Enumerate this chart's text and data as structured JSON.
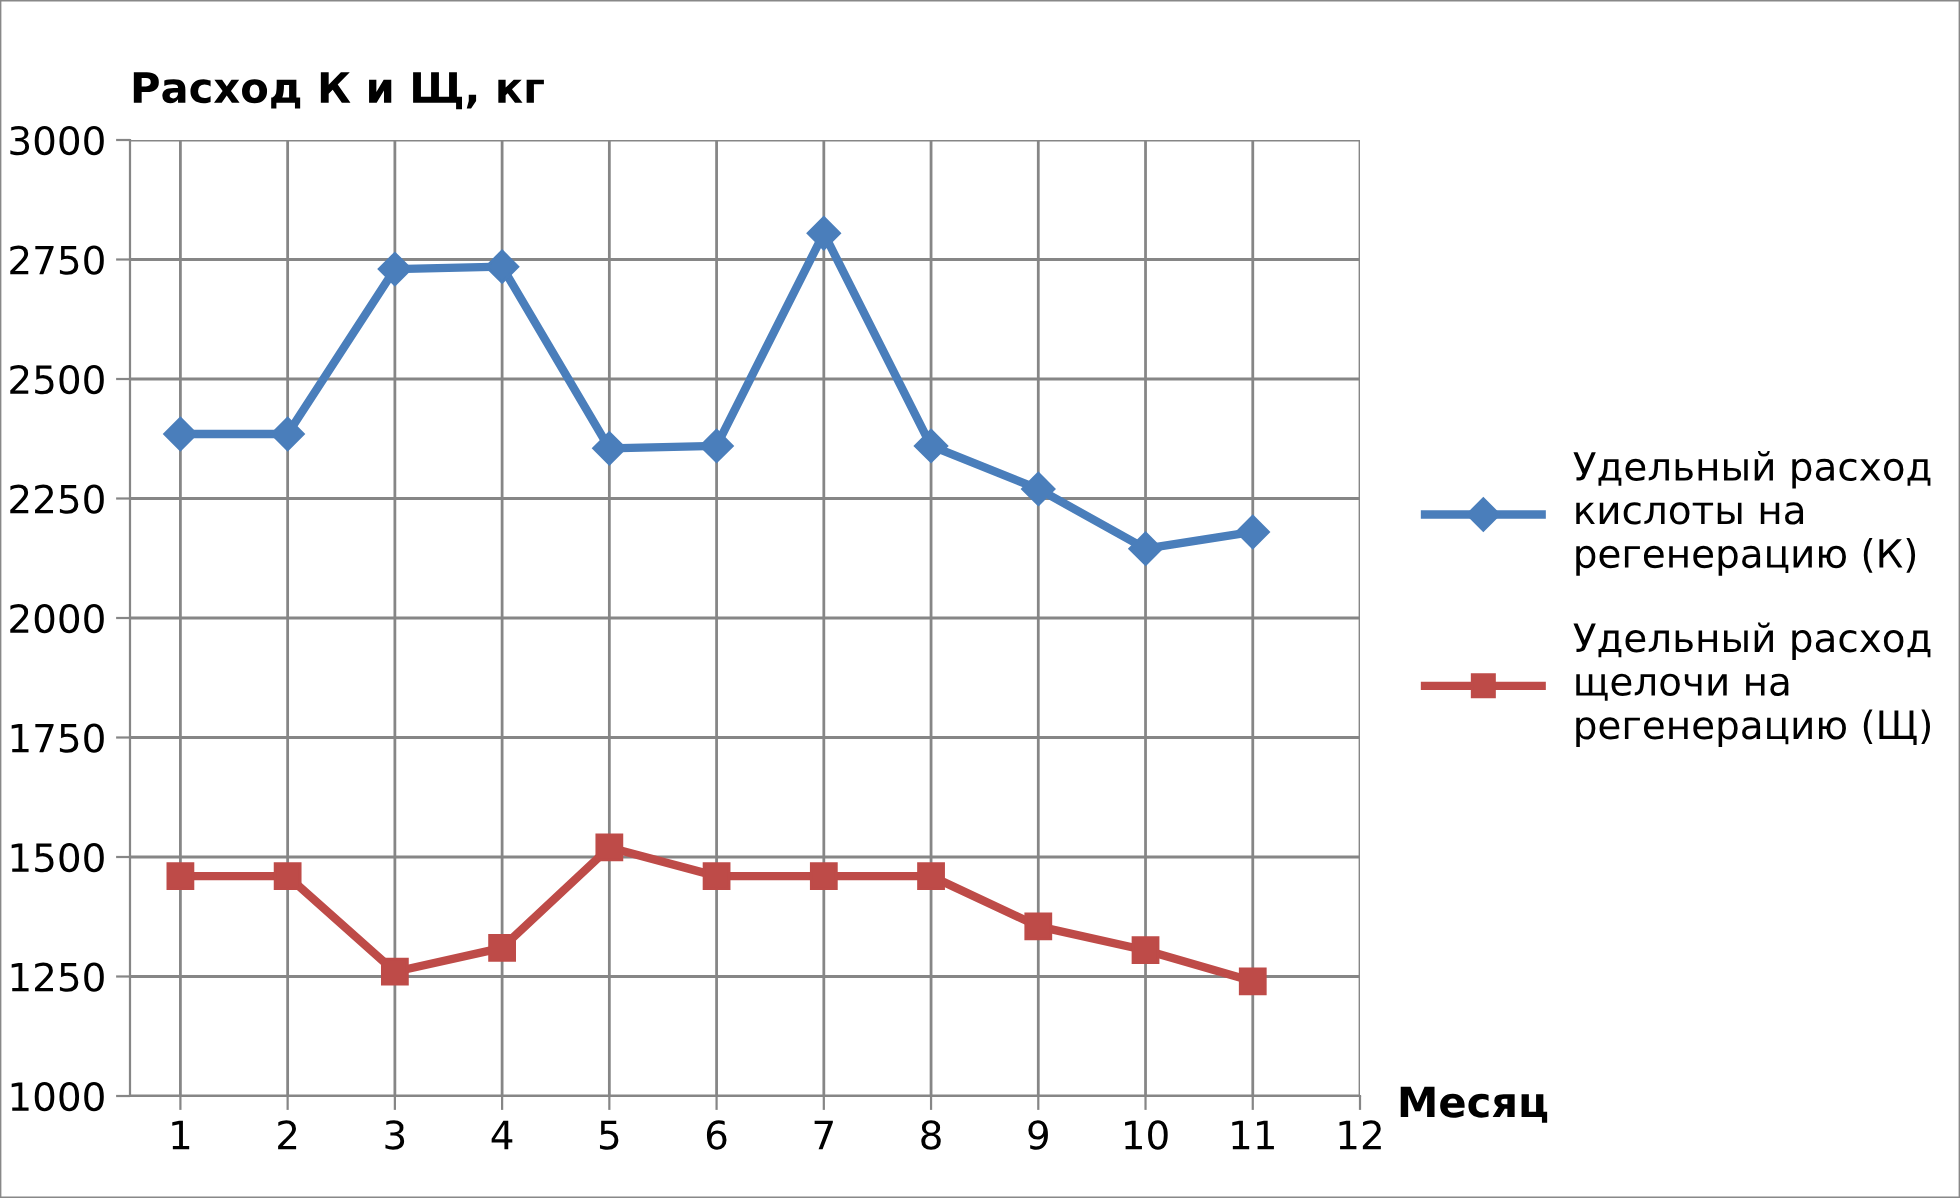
{
  "chart_data": {
    "type": "line",
    "ylabel": "Расход К и Щ, кг",
    "xlabel": "Месяц",
    "x": [
      1,
      2,
      3,
      4,
      5,
      6,
      7,
      8,
      9,
      10,
      11
    ],
    "series": [
      {
        "name": "Удельный расход\nкислоты на\nрегенерацию (К)",
        "color": "#4a7ebb",
        "marker": "diamond",
        "values": [
          2385,
          2385,
          2730,
          2735,
          2355,
          2360,
          2805,
          2360,
          2270,
          2145,
          2180
        ]
      },
      {
        "name": "Удельный расход\nщелочи на\nрегенерацию (Щ)",
        "color": "#be4b48",
        "marker": "square",
        "values": [
          1460,
          1460,
          1260,
          1310,
          1520,
          1460,
          1460,
          1460,
          1355,
          1305,
          1240
        ]
      }
    ],
    "xlim": [
      0.53,
      12
    ],
    "xticks": [
      1,
      2,
      3,
      4,
      5,
      6,
      7,
      8,
      9,
      10,
      11,
      12
    ],
    "ylim": [
      1000,
      3000
    ],
    "yticks": [
      1000,
      1250,
      1500,
      1750,
      2000,
      2250,
      2500,
      2750,
      3000
    ],
    "grid": true,
    "legend": "right",
    "line_style": "solid"
  }
}
